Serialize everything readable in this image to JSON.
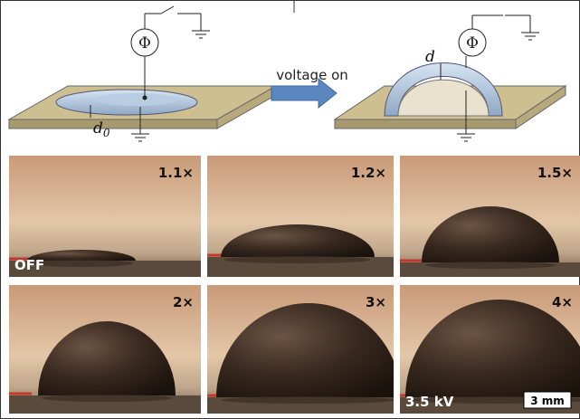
{
  "diagram": {
    "left": {
      "symbol": "Φ",
      "thickness_label": "d",
      "thickness_subscript": "0"
    },
    "arrow_label": "voltage on",
    "right": {
      "symbol": "Φ",
      "thickness_label": "d"
    }
  },
  "panels": [
    {
      "label": "1.1×",
      "corner_label": "OFF"
    },
    {
      "label": "1.2×"
    },
    {
      "label": "1.5×"
    },
    {
      "label": "2×"
    },
    {
      "label": "3×"
    },
    {
      "label": "4×",
      "corner_label": "3.5 kV",
      "scale_label": "3 mm"
    }
  ]
}
